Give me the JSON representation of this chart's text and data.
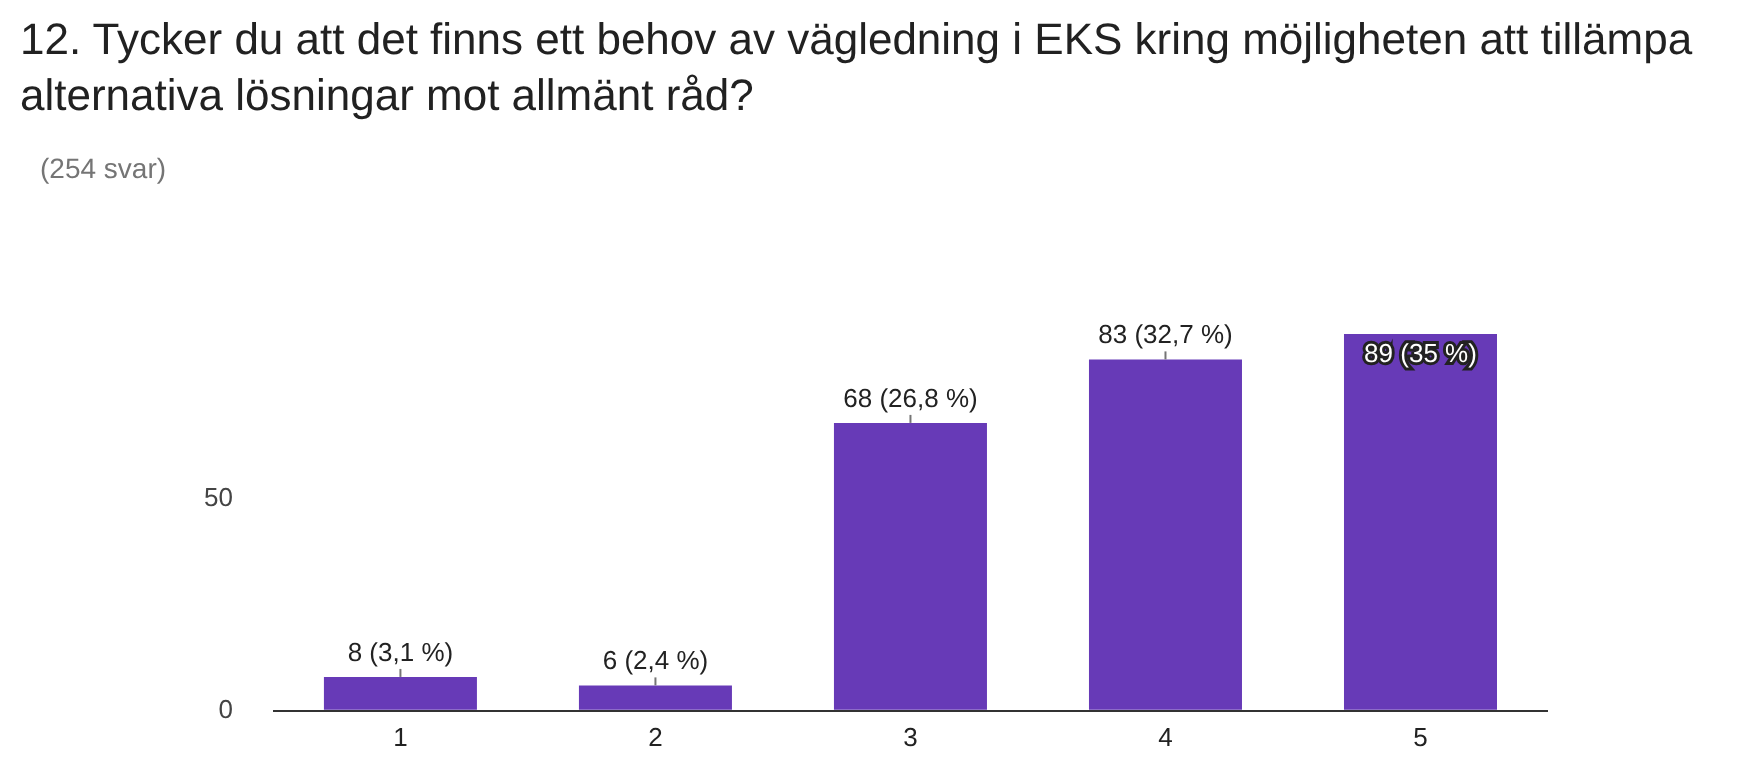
{
  "chart_data": {
    "type": "bar",
    "title": "12. Tycker du att det finns ett behov av vägledning i EKS kring möjligheten att tillämpa alternativa lösningar mot allmänt råd?",
    "subtitle": "(254 svar)",
    "categories": [
      "1",
      "2",
      "3",
      "4",
      "5"
    ],
    "values": [
      8,
      6,
      68,
      83,
      89
    ],
    "value_labels": [
      "8 (3,1 %)",
      "6 (2,4 %)",
      "68 (26,8 %)",
      "83 (32,7 %)",
      "89 (35 %)"
    ],
    "color": "#673ab7",
    "ylim": [
      0,
      89
    ],
    "yticks": [
      0,
      50
    ],
    "grid": false,
    "legend": false
  }
}
